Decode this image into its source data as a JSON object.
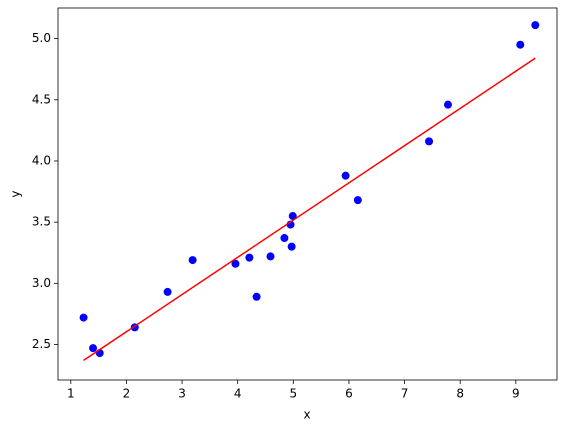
{
  "chart_data": {
    "type": "scatter",
    "x_label": "x",
    "y_label": "y",
    "x": [
      1.23,
      1.4,
      1.52,
      2.15,
      2.74,
      3.19,
      3.96,
      4.21,
      4.34,
      4.59,
      4.84,
      4.95,
      4.99,
      4.97,
      5.94,
      6.16,
      7.44,
      7.78,
      9.08,
      9.35
    ],
    "values": [
      2.72,
      2.47,
      2.43,
      2.64,
      2.93,
      3.19,
      3.16,
      3.21,
      2.89,
      3.22,
      3.37,
      3.48,
      3.55,
      3.3,
      3.88,
      3.68,
      4.16,
      4.46,
      4.95,
      5.11
    ],
    "color": "#0000ff",
    "fit": {
      "x": [
        1.23,
        9.35
      ],
      "values": [
        2.37,
        4.84
      ],
      "color": "#ff0000"
    },
    "xlim": [
      0.77,
      9.74
    ],
    "ylim": [
      2.21,
      5.25
    ],
    "xticks": [
      1,
      2,
      3,
      4,
      5,
      6,
      7,
      8,
      9
    ],
    "yticks": [
      2.5,
      {
        "value": 3,
        "label": "3.0"
      },
      3.5,
      {
        "value": 4,
        "label": "4.0"
      },
      4.5,
      {
        "value": 5,
        "label": "5.0"
      }
    ]
  }
}
